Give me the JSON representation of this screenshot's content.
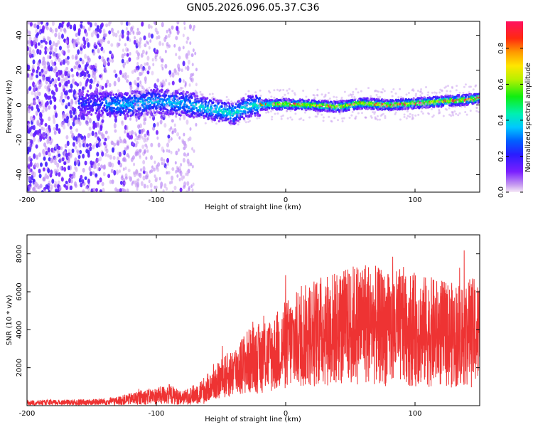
{
  "title": "GN05.2026.096.05.37.C36",
  "chart_data": [
    {
      "type": "heatmap",
      "name": "spectrogram",
      "xlabel": "Height of straight line (km)",
      "ylabel": "Frequency (Hz)",
      "xlim": [
        -200,
        150
      ],
      "ylim": [
        -50,
        48
      ],
      "xticks": [
        -200,
        -100,
        0,
        100
      ],
      "xtick_labels": [
        "-200",
        "-100",
        "0",
        "100"
      ],
      "yticks": [
        -40,
        -20,
        0,
        20,
        40
      ],
      "ytick_labels": [
        "-40",
        "-20",
        "0",
        "20",
        "40"
      ],
      "colorbar": {
        "label": "Normalized spectral amplitude",
        "range": [
          0,
          0.95
        ],
        "ticks": [
          0.0,
          0.2,
          0.4,
          0.6,
          0.8
        ],
        "tick_labels": [
          "0.0",
          "0.2",
          "0.4",
          "0.6",
          "0.8"
        ]
      },
      "ridge": {
        "x": [
          -200,
          -150,
          -130,
          -100,
          -80,
          -60,
          -40,
          -30,
          -20,
          0,
          20,
          40,
          60,
          80,
          100,
          120,
          140,
          150
        ],
        "freq": [
          0,
          1,
          0,
          2,
          1,
          -2,
          -5,
          -1,
          0,
          0.5,
          0,
          -1,
          1,
          0,
          1,
          2,
          3,
          4
        ]
      }
    },
    {
      "type": "line",
      "name": "snr",
      "xlabel": "Height of straight line (km)",
      "ylabel": "SNR (10 * v/v)",
      "xlim": [
        -200,
        150
      ],
      "ylim": [
        0,
        9000
      ],
      "xticks": [
        -200,
        -100,
        0,
        100
      ],
      "xtick_labels": [
        "-200",
        "-100",
        "0",
        "100"
      ],
      "yticks": [
        2000,
        4000,
        6000,
        8000
      ],
      "ytick_labels": [
        "2000",
        "4000",
        "6000",
        "8000"
      ],
      "color": "#ee3333",
      "series": [
        {
          "name": "SNR envelope",
          "x": [
            -200,
            -150,
            -130,
            -110,
            -100,
            -90,
            -80,
            -70,
            -60,
            -50,
            -40,
            -30,
            -20,
            -10,
            0,
            10,
            20,
            30,
            40,
            50,
            60,
            70,
            80,
            90,
            100,
            110,
            120,
            130,
            140,
            150
          ],
          "values": [
            150,
            180,
            250,
            450,
            500,
            600,
            400,
            600,
            900,
            1400,
            1800,
            2300,
            2500,
            2700,
            3200,
            3500,
            3800,
            4000,
            4100,
            4200,
            4500,
            4200,
            4000,
            4200,
            4000,
            3900,
            3800,
            3700,
            3900,
            3800
          ]
        }
      ]
    }
  ]
}
